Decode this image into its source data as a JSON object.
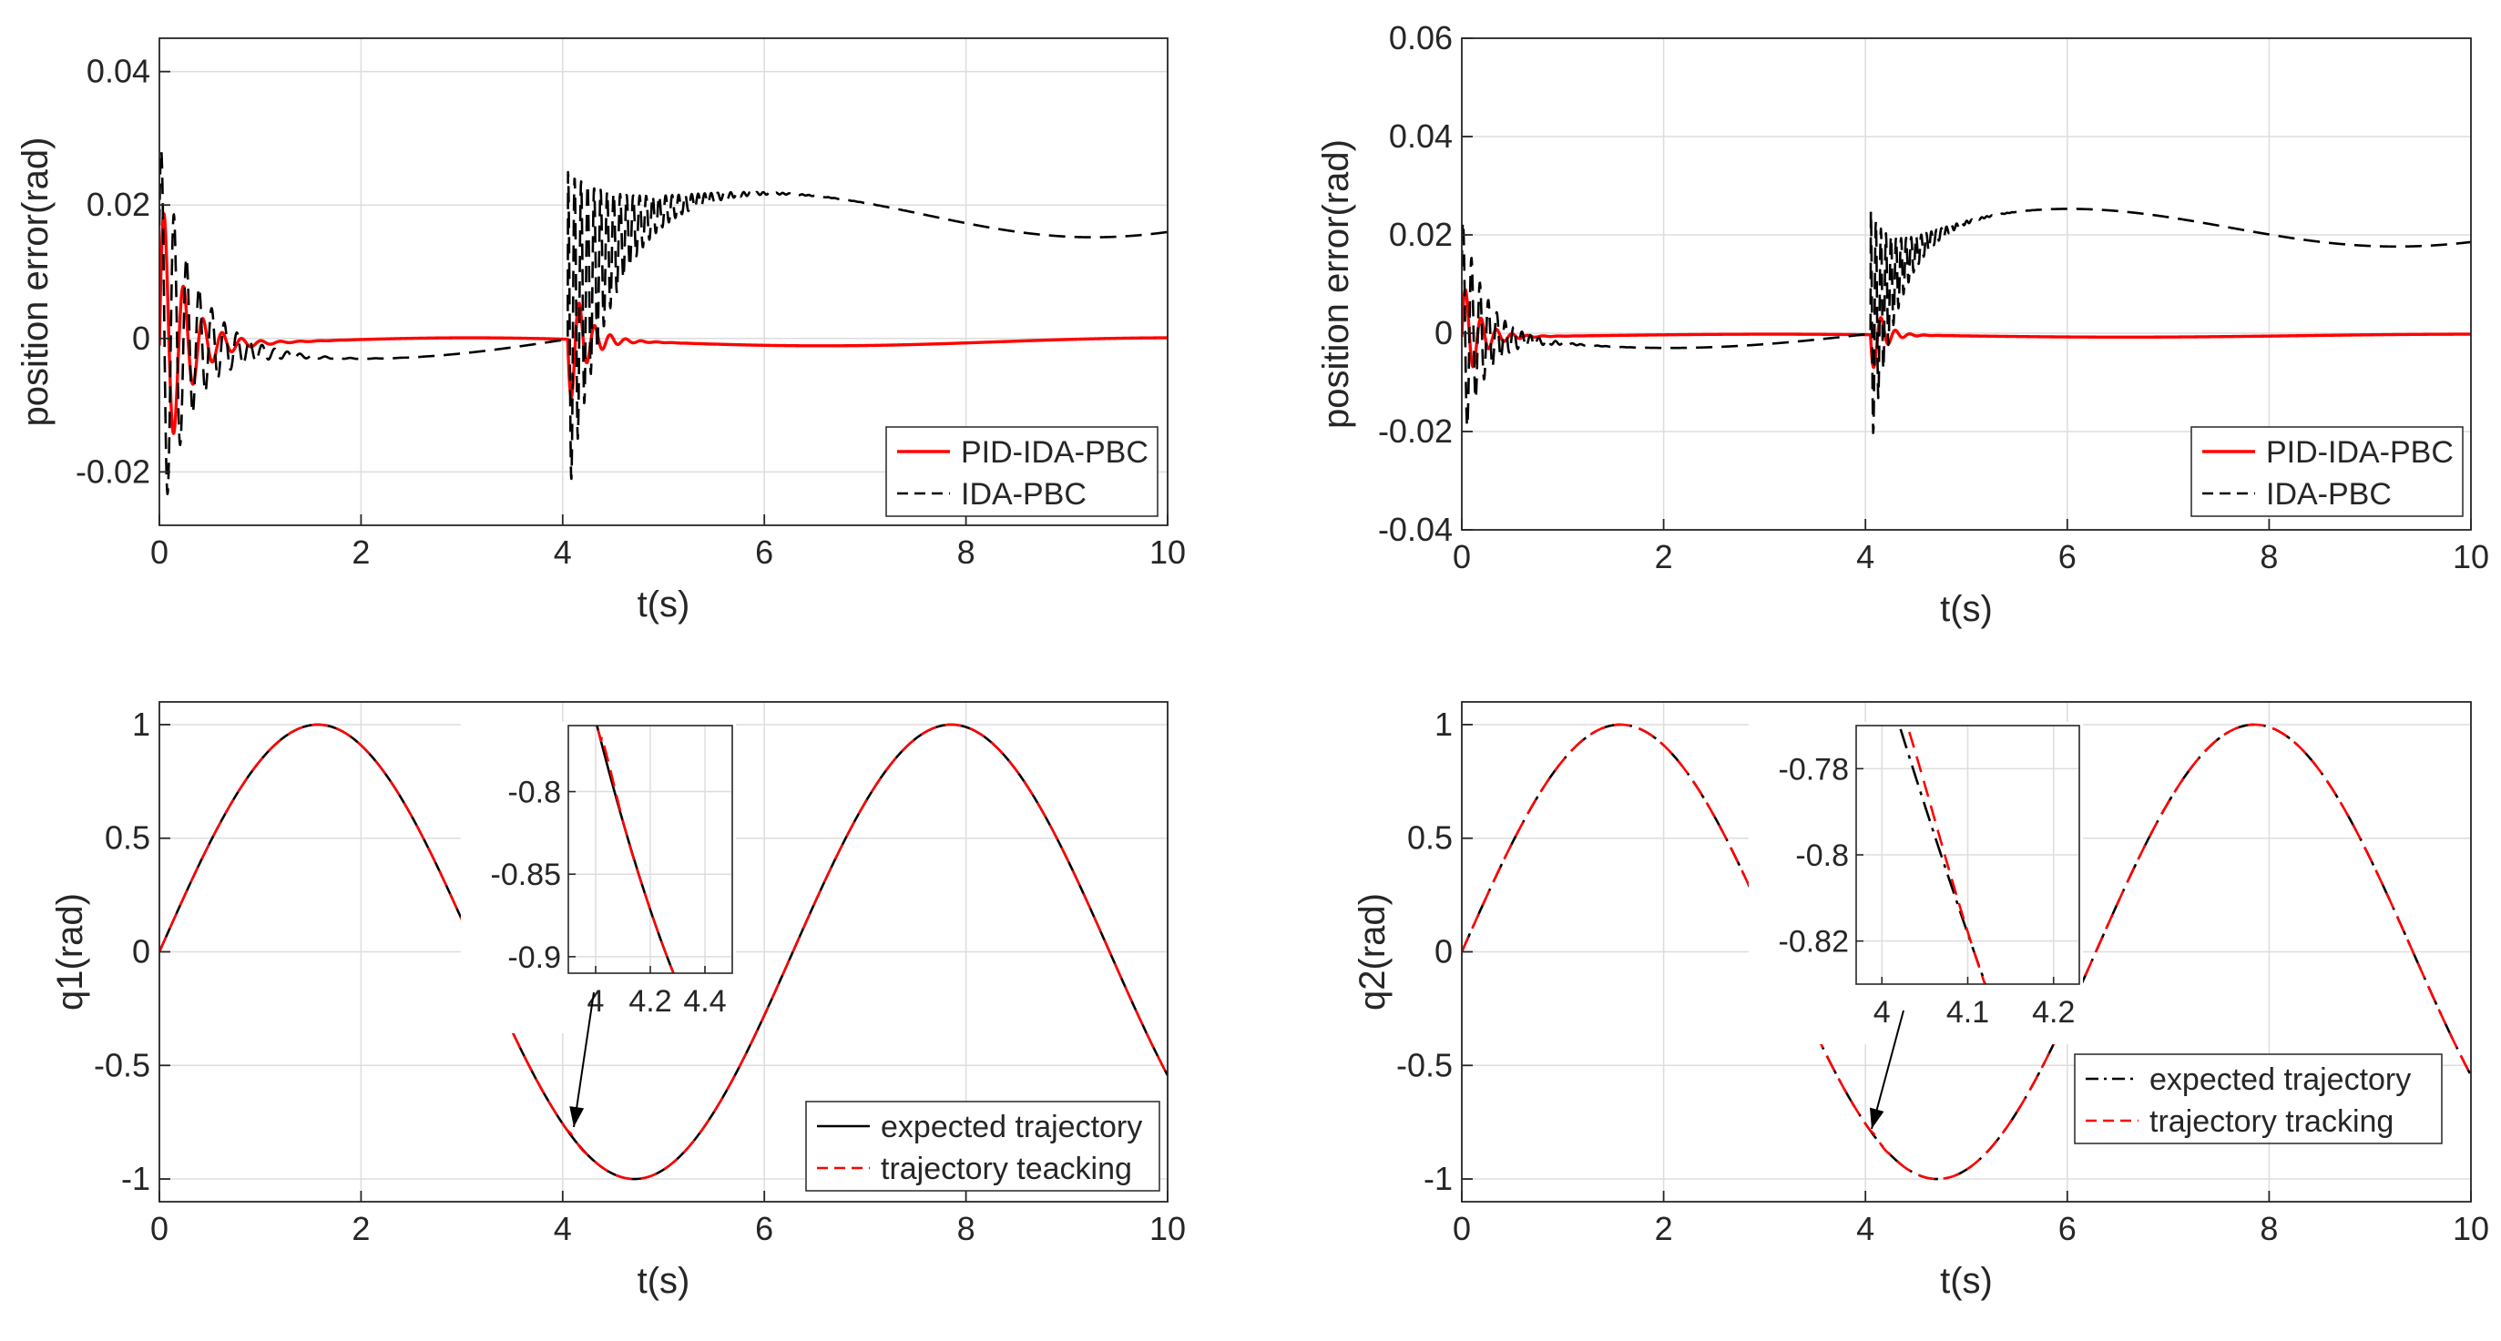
{
  "colors": {
    "red": "#ff0000",
    "black": "#000000",
    "grid": "#dddddd",
    "axis": "#262626"
  },
  "chart_data": [
    {
      "type": "line",
      "xlabel": "t(s)",
      "ylabel": "position error(rad)",
      "xlim": [
        0,
        10
      ],
      "ylim": [
        -0.028,
        0.045
      ],
      "xticks": [
        "0",
        "2",
        "4",
        "6",
        "8",
        "10"
      ],
      "yticks": [
        "-0.02",
        "0",
        "0.02",
        "0.04"
      ],
      "grid": true,
      "legend": "bottom-right",
      "series": [
        {
          "name": "PID-IDA-PBC",
          "color": "#ff0000",
          "style": "solid",
          "model": {
            "a1": 0.024,
            "f1": 5.2,
            "d1": 4.2,
            "a2": 0.012,
            "f2": 6.5,
            "d2": 6.0,
            "drift": 0.0006
          }
        },
        {
          "name": "IDA-PBC",
          "color": "#000000",
          "style": "dashed",
          "model": {
            "a1": 0.03,
            "f1": 8.0,
            "d1": 3.2,
            "a2": 0.025,
            "f2": 15.5,
            "d2": 2.5,
            "off": 0.0185,
            "r": 2.8
          }
        }
      ]
    },
    {
      "type": "line",
      "xlabel": "t(s)",
      "ylabel": "position error(rad)",
      "xlim": [
        0,
        10
      ],
      "ylim": [
        -0.04,
        0.06
      ],
      "xticks": [
        "0",
        "2",
        "4",
        "6",
        "8",
        "10"
      ],
      "yticks": [
        "-0.04",
        "-0.02",
        "0",
        "0.02",
        "0.04",
        "0.06"
      ],
      "grid": true,
      "legend": "bottom-right",
      "series": [
        {
          "name": "PID-IDA-PBC",
          "color": "#ff0000",
          "style": "solid",
          "model": {
            "a1": 0.012,
            "f1": 6.5,
            "d1": 6.0,
            "a2": 0.01,
            "f2": 7.0,
            "d2": 9.0,
            "drift": 0.0003
          }
        },
        {
          "name": "IDA-PBC",
          "color": "#000000",
          "style": "dashed",
          "model": {
            "a1": 0.024,
            "f1": 12.0,
            "d1": 4.5,
            "a2": 0.025,
            "f2": 20.0,
            "d2": 4.5,
            "off": 0.0215,
            "r": 3.0
          }
        }
      ]
    },
    {
      "type": "line",
      "xlabel": "t(s)",
      "ylabel": "q1(rad)",
      "xlim": [
        0,
        10
      ],
      "ylim": [
        -1.1,
        1.1
      ],
      "xticks": [
        "0",
        "2",
        "4",
        "6",
        "8",
        "10"
      ],
      "yticks": [
        "-1",
        "-0.5",
        "0",
        "0.5",
        "1"
      ],
      "grid": true,
      "legend": "bottom-right",
      "series": [
        {
          "name": "expected trajectory",
          "color": "#000000",
          "style": "solid",
          "function": "sin(t)"
        },
        {
          "name": "trajectory teacking",
          "color": "#ff0000",
          "style": "dashed",
          "function": "sin(t)"
        }
      ],
      "inset": {
        "xlim": [
          3.9,
          4.5
        ],
        "ylim": [
          -0.91,
          -0.76
        ],
        "xticks": [
          "4",
          "4.2",
          "4.4"
        ],
        "yticks": [
          "-0.8",
          "-0.85",
          "-0.9"
        ]
      }
    },
    {
      "type": "line",
      "xlabel": "t(s)",
      "ylabel": "q2(rad)",
      "xlim": [
        0,
        10
      ],
      "ylim": [
        -1.1,
        1.1
      ],
      "xticks": [
        "0",
        "2",
        "4",
        "6",
        "8",
        "10"
      ],
      "yticks": [
        "-1",
        "-0.5",
        "0",
        "0.5",
        "1"
      ],
      "grid": true,
      "legend": "bottom-right",
      "series": [
        {
          "name": "expected trajectory",
          "color": "#000000",
          "style": "dashdot",
          "function": "sin(t)"
        },
        {
          "name": "trajectory tracking",
          "color": "#ff0000",
          "style": "dashed",
          "function": "sin(t)"
        }
      ],
      "inset": {
        "xlim": [
          3.97,
          4.23
        ],
        "ylim": [
          -0.83,
          -0.77
        ],
        "xticks": [
          "4",
          "4.1",
          "4.2"
        ],
        "yticks": [
          "-0.78",
          "-0.8",
          "-0.82"
        ]
      }
    }
  ]
}
